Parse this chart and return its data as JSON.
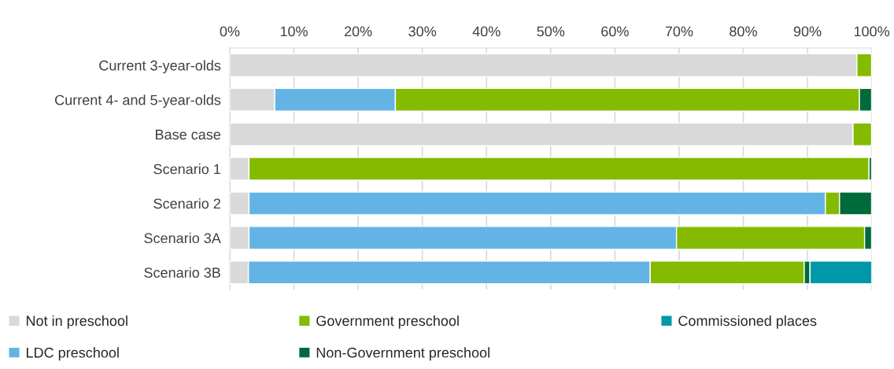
{
  "chart_data": {
    "type": "bar",
    "orientation": "horizontal",
    "stacked": true,
    "categories": [
      "Current 3-year-olds",
      "Current 4- and 5-year-olds",
      "Base case",
      "Scenario 1",
      "Scenario 2",
      "Scenario 3A",
      "Scenario 3B"
    ],
    "series": [
      {
        "name": "Not in preschool",
        "color": "#d9d9d9",
        "values": [
          97.7,
          7.0,
          97.1,
          3.0,
          3.0,
          3.0,
          2.9
        ]
      },
      {
        "name": "LDC preschool",
        "color": "#63b4e4",
        "values": [
          0,
          18.8,
          0,
          0,
          89.8,
          66.6,
          62.6
        ]
      },
      {
        "name": "Government preschool",
        "color": "#84bb00",
        "values": [
          2.3,
          72.3,
          2.9,
          96.6,
          2.2,
          29.3,
          24.0
        ]
      },
      {
        "name": "Non-Government preschool",
        "color": "#006b3a",
        "values": [
          0,
          1.9,
          0,
          0.4,
          5.0,
          1.1,
          0.9
        ]
      },
      {
        "name": "Commissioned places",
        "color": "#0098a8",
        "values": [
          0,
          0,
          0,
          0,
          0,
          0,
          9.6
        ]
      }
    ],
    "xlim": [
      0,
      100
    ],
    "xticks": [
      {
        "value": 0,
        "label": "0%"
      },
      {
        "value": 10,
        "label": "10%"
      },
      {
        "value": 20,
        "label": "20%"
      },
      {
        "value": 30,
        "label": "30%"
      },
      {
        "value": 40,
        "label": "40%"
      },
      {
        "value": 50,
        "label": "50%"
      },
      {
        "value": 60,
        "label": "60%"
      },
      {
        "value": 70,
        "label": "70%"
      },
      {
        "value": 80,
        "label": "80%"
      },
      {
        "value": 90,
        "label": "90%"
      },
      {
        "value": 100,
        "label": "100%"
      }
    ],
    "grid": "x",
    "legend": "bottom"
  }
}
